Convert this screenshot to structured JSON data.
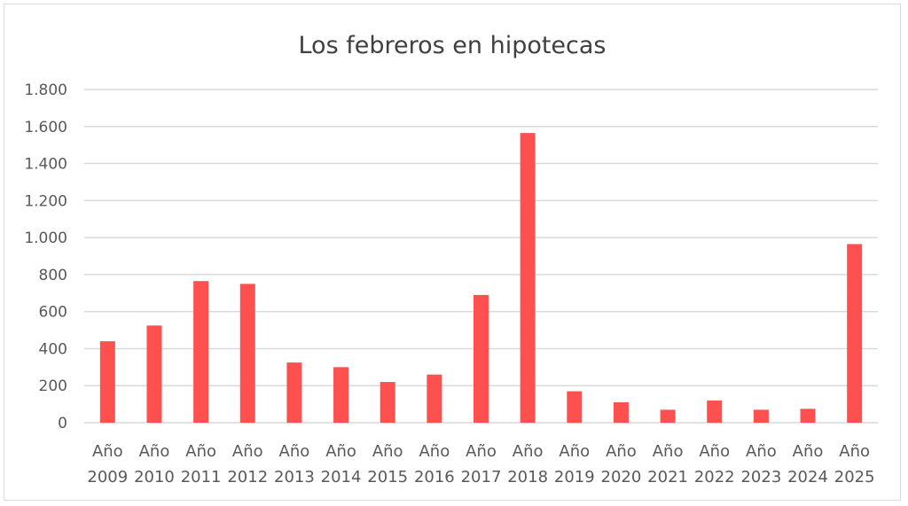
{
  "chart_data": {
    "type": "bar",
    "title": "Los febreros en hipotecas",
    "xlabel": "",
    "ylabel": "",
    "ylim": [
      0,
      1800
    ],
    "yticks": [
      0,
      200,
      400,
      600,
      800,
      1000,
      1200,
      1400,
      1600,
      1800
    ],
    "ytick_labels": [
      "0",
      "200",
      "400",
      "600",
      "800",
      "1.000",
      "1.200",
      "1.400",
      "1.600",
      "1.800"
    ],
    "grid": true,
    "legend": "none",
    "bar_color": "#ff5050",
    "categories": [
      [
        "Año",
        "2009"
      ],
      [
        "Año",
        "2010"
      ],
      [
        "Año",
        "2011"
      ],
      [
        "Año",
        "2012"
      ],
      [
        "Año",
        "2013"
      ],
      [
        "Año",
        "2014"
      ],
      [
        "Año",
        "2015"
      ],
      [
        "Año",
        "2016"
      ],
      [
        "Año",
        "2017"
      ],
      [
        "Año",
        "2018"
      ],
      [
        "Año",
        "2019"
      ],
      [
        "Año",
        "2020"
      ],
      [
        "Año",
        "2021"
      ],
      [
        "Año",
        "2022"
      ],
      [
        "Año",
        "2023"
      ],
      [
        "Año",
        "2024"
      ],
      [
        "Año",
        "2025"
      ]
    ],
    "values": [
      440,
      525,
      765,
      750,
      325,
      300,
      220,
      260,
      690,
      1565,
      170,
      110,
      70,
      120,
      70,
      75,
      965
    ]
  }
}
